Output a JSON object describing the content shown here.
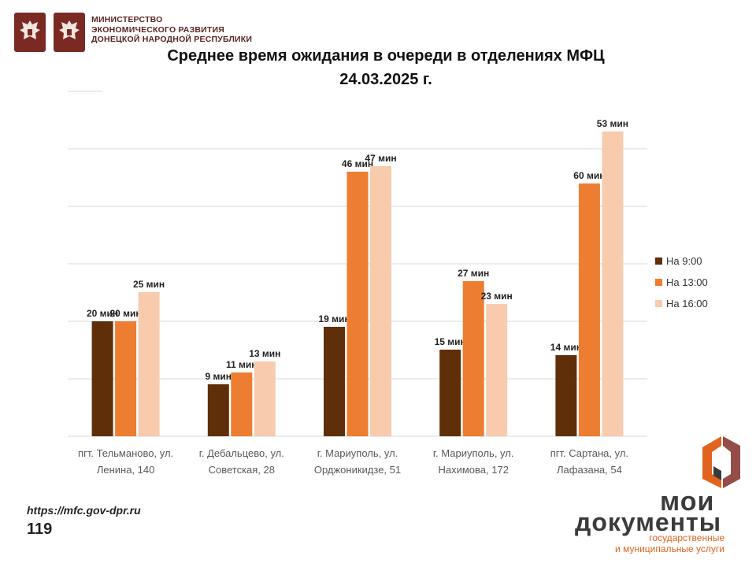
{
  "header": {
    "ministry_lines": [
      "МИНИСТЕРСТВО",
      "ЭКОНОМИЧЕСКОГО РАЗВИТИЯ",
      "ДОНЕЦКОЙ НАРОДНОЙ РЕСПУБЛИКИ"
    ]
  },
  "chart_data": {
    "type": "bar",
    "title": "Среднее время ожидания в очереди в отделениях МФЦ",
    "subtitle": "24.03.2025   г.",
    "categories": [
      [
        "пгт. Тельманово,  ул.",
        "Ленина, 140"
      ],
      [
        "г. Дебальцево, ул.",
        "Советская, 28"
      ],
      [
        "г. Мариуполь, ул.",
        "Орджоникидзе, 51"
      ],
      [
        "г. Мариуполь, ул.",
        "Нахимова, 172"
      ],
      [
        "пгт. Сартана, ул.",
        "Лафазана, 54"
      ]
    ],
    "series": [
      {
        "name": "На 9:00",
        "color": "#5f2f0a",
        "values": [
          20,
          9,
          19,
          15,
          14
        ],
        "labels": [
          "20 мин",
          "9 мин",
          "19 мин",
          "15 мин",
          "14 мин"
        ]
      },
      {
        "name": "На 13:00",
        "color": "#ed7d31",
        "values": [
          20,
          11,
          46,
          27,
          60
        ],
        "labels": [
          "20 мин",
          "11 мин",
          "46 мин",
          "27 мин",
          "60 мин"
        ]
      },
      {
        "name": "На 16:00",
        "color": "#f8cbad",
        "values": [
          25,
          13,
          47,
          23,
          53
        ],
        "labels": [
          "25 мин",
          "13 мин",
          "47 мин",
          "23 мин",
          "53 мин"
        ]
      }
    ],
    "legend_position": "right",
    "grid": true
  },
  "footer": {
    "url": "https://mfc.gov-dpr.ru",
    "phone": "119",
    "logo_line1": "мои",
    "logo_line2": "документы",
    "logo_sub1": "государственные",
    "logo_sub2": "и муниципальные услуги"
  }
}
